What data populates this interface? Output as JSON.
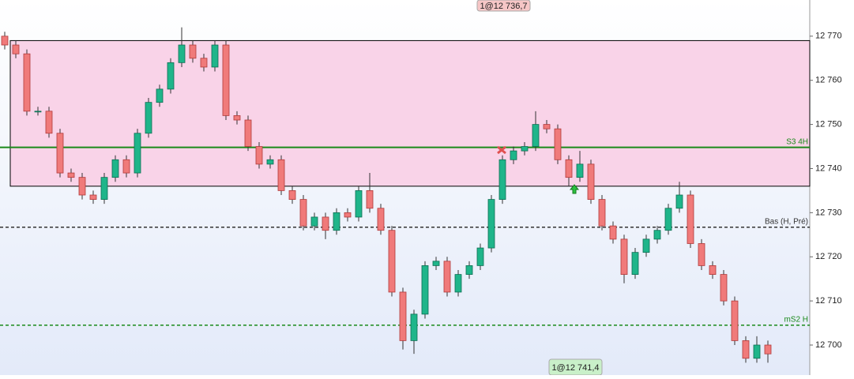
{
  "chart_data": {
    "type": "candlestick",
    "ylim": [
      12693.2,
      12778.2
    ],
    "yticks": [
      {
        "value": 12700,
        "label": "12 700"
      },
      {
        "value": 12710,
        "label": "12 710"
      },
      {
        "value": 12720,
        "label": "12 720"
      },
      {
        "value": 12730,
        "label": "12 730"
      },
      {
        "value": 12740,
        "label": "12 740"
      },
      {
        "value": 12750,
        "label": "12 750"
      },
      {
        "value": 12760,
        "label": "12 760"
      },
      {
        "value": 12770,
        "label": "12 770"
      }
    ],
    "up_color": "#1fb58a",
    "down_color": "#f07a7a",
    "open": [
      12770,
      12768,
      12766,
      12753,
      12753,
      12748,
      12739,
      12738,
      12734,
      12733,
      12738,
      12742,
      12739,
      12748,
      12755,
      12758,
      12764,
      12768,
      12765,
      12763,
      12768,
      12752,
      12751,
      12745,
      12741,
      12742,
      12735,
      12733,
      12727,
      12729,
      12726,
      12730,
      12729,
      12735,
      12731,
      12726,
      12712,
      12701,
      12707,
      12718,
      12719,
      12712,
      12716,
      12718,
      12722,
      12733,
      12742,
      12744,
      12745,
      12750,
      12749,
      12742,
      12738,
      12741,
      12733,
      12727,
      12724,
      12716,
      12721,
      12724,
      12726,
      12731,
      12734,
      12723,
      12718,
      12716,
      12710,
      12701,
      12697,
      12700
    ],
    "close": [
      12768,
      12766,
      12753,
      12753,
      12748,
      12739,
      12738,
      12734,
      12733,
      12738,
      12742,
      12739,
      12748,
      12755,
      12758,
      12764,
      12768,
      12765,
      12763,
      12768,
      12752,
      12751,
      12745,
      12741,
      12742,
      12735,
      12733,
      12727,
      12729,
      12726,
      12730,
      12729,
      12735,
      12731,
      12726,
      12712,
      12701,
      12707,
      12718,
      12719,
      12712,
      12716,
      12718,
      12722,
      12733,
      12742,
      12744,
      12745,
      12750,
      12749,
      12742,
      12738,
      12741,
      12733,
      12727,
      12724,
      12716,
      12721,
      12724,
      12726,
      12731,
      12734,
      12723,
      12718,
      12716,
      12710,
      12701,
      12697,
      12700,
      12698
    ],
    "high": [
      12771,
      12769,
      12767,
      12754,
      12754,
      12749,
      12740,
      12739,
      12735,
      12739,
      12743,
      12743,
      12749,
      12756,
      12759,
      12765,
      12772,
      12769,
      12766,
      12769,
      12769,
      12753,
      12752,
      12746,
      12743,
      12743,
      12736,
      12734,
      12730,
      12730,
      12731,
      12731,
      12736,
      12739,
      12732,
      12727,
      12713,
      12708,
      12719,
      12720,
      12720,
      12717,
      12719,
      12723,
      12734,
      12743,
      12745,
      12746,
      12753,
      12751,
      12750,
      12743,
      12744,
      12742,
      12734,
      12728,
      12725,
      12722,
      12725,
      12727,
      12732,
      12737,
      12735,
      12724,
      12719,
      12717,
      12711,
      12702,
      12702,
      12701
    ],
    "low": [
      12767,
      12765,
      12752,
      12752,
      12747,
      12738,
      12737,
      12733,
      12732,
      12732,
      12737,
      12738,
      12738,
      12747,
      12754,
      12757,
      12763,
      12764,
      12762,
      12762,
      12751,
      12750,
      12744,
      12740,
      12740,
      12734,
      12732,
      12726,
      12726,
      12724,
      12725,
      12728,
      12728,
      12730,
      12725,
      12711,
      12699,
      12698,
      12706,
      12717,
      12711,
      12711,
      12715,
      12717,
      12721,
      12732,
      12741,
      12743,
      12744,
      12748,
      12741,
      12736,
      12737,
      12732,
      12726,
      12723,
      12714,
      12715,
      12720,
      12723,
      12725,
      12730,
      12722,
      12717,
      12715,
      12709,
      12700,
      12696,
      12696,
      12696
    ],
    "zone": {
      "top": 12769,
      "bottom": 12736,
      "color": "#f9d3e8"
    },
    "levels": [
      {
        "label": "S3 4H",
        "value": 12744.8,
        "color": "#1a8a1a",
        "style": "solid"
      },
      {
        "label": "Bas (H, Pré)",
        "value": 12726.7,
        "color": "#333333",
        "style": "dashed"
      },
      {
        "label": "mS2 H",
        "value": 12704.5,
        "color": "#1a8a1a",
        "style": "dashed"
      }
    ],
    "annotations": [
      {
        "text": "1@12 736,7",
        "color": "#f6c6c6"
      },
      {
        "text": "1@12 741,4",
        "color": "#c9f0c9"
      }
    ]
  }
}
